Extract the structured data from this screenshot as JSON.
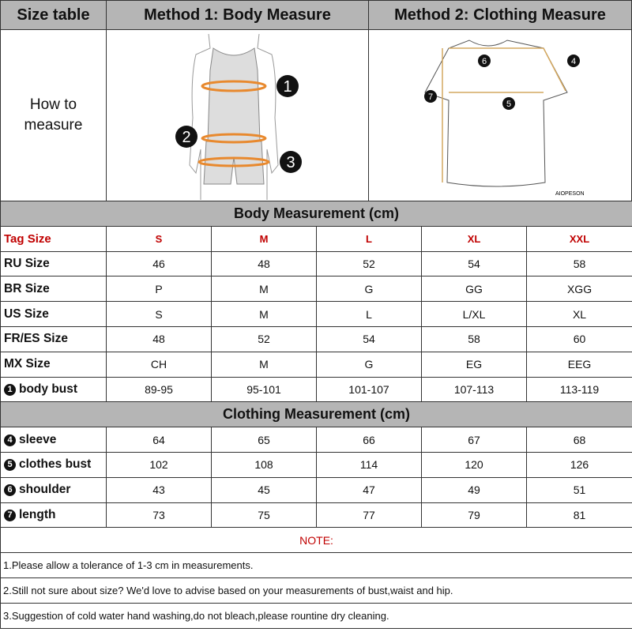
{
  "header": {
    "size_table": "Size table",
    "method1": "Method 1: Body  Measure",
    "method2": "Method 2: Clothing Measure"
  },
  "how_to": "How to measure",
  "illustration": {
    "body_markers": [
      "1",
      "2",
      "3"
    ],
    "shirt_markers": [
      "4",
      "5",
      "6",
      "7"
    ],
    "brand": "AIOPESON",
    "accent": "#e8892e"
  },
  "body_section": "Body Measurement (cm)",
  "clothing_section": "Clothing Measurement (cm)",
  "sizes_label": "Tag Size",
  "sizes": [
    "S",
    "M",
    "L",
    "XL",
    "XXL"
  ],
  "body_rows": [
    {
      "label": "RU Size",
      "values": [
        "46",
        "48",
        "52",
        "54",
        "58"
      ]
    },
    {
      "label": "BR Size",
      "values": [
        "P",
        "M",
        "G",
        "GG",
        "XGG"
      ]
    },
    {
      "label": "US Size",
      "values": [
        "S",
        "M",
        "L",
        "L/XL",
        "XL"
      ]
    },
    {
      "label": "FR/ES Size",
      "values": [
        "48",
        "52",
        "54",
        "58",
        "60"
      ]
    },
    {
      "label": "MX Size",
      "values": [
        "CH",
        "M",
        "G",
        "EG",
        "EEG"
      ]
    },
    {
      "marker": "1",
      "label": "body bust",
      "values": [
        "89-95",
        "95-101",
        "101-107",
        "107-113",
        "113-119"
      ]
    }
  ],
  "clothing_rows": [
    {
      "marker": "4",
      "label": "sleeve",
      "values": [
        "64",
        "65",
        "66",
        "67",
        "68"
      ]
    },
    {
      "marker": "5",
      "label": "clothes bust",
      "values": [
        "102",
        "108",
        "114",
        "120",
        "126"
      ]
    },
    {
      "marker": "6",
      "label": "shoulder",
      "values": [
        "43",
        "45",
        "47",
        "49",
        "51"
      ]
    },
    {
      "marker": "7",
      "label": "length",
      "values": [
        "73",
        "75",
        "77",
        "79",
        "81"
      ]
    }
  ],
  "note": {
    "title": "NOTE:",
    "lines": [
      "1.Please allow a tolerance of 1-3 cm in measurements.",
      "2.Still not sure about size? We'd love to advise based on your measurements of bust,waist and hip.",
      "3.Suggestion of cold water hand washing,do not bleach,please rountine dry cleaning."
    ]
  }
}
